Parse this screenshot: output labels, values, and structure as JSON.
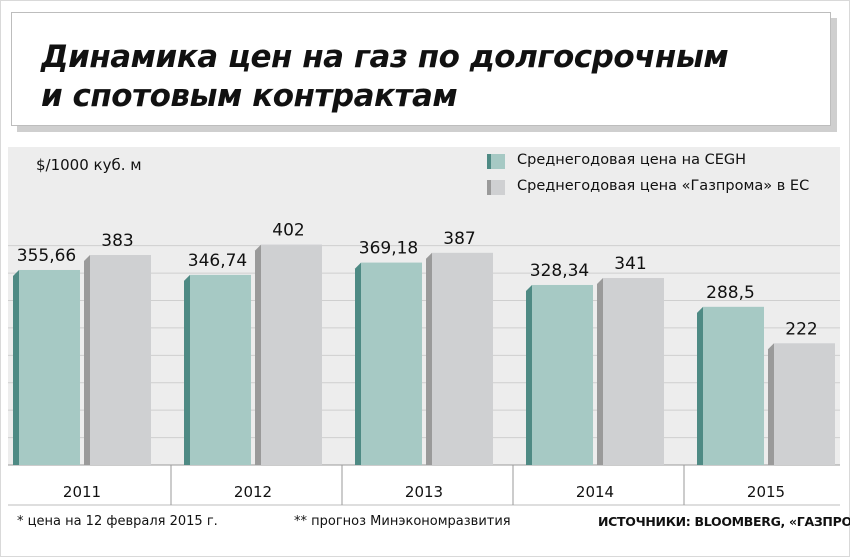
{
  "title": {
    "line1": "Динамика цен на газ по долгосрочным",
    "line2": "и спотовым контрактам"
  },
  "unit_label": "$/1000 куб. м",
  "legend": [
    {
      "label": "Среднегодовая цена на CEGH",
      "color": "#a6c9c4"
    },
    {
      "label": "Среднегодовая цена «Газпрома» в ЕС",
      "color": "#cfd0d2"
    }
  ],
  "footnotes": {
    "note1": "* цена на 12 февраля 2015 г.",
    "note2": "** прогноз Минэкономразвития",
    "source": "ИСТОЧНИКИ: BLOOMBERG, «ГАЗПРОМ»"
  },
  "colors": {
    "series1_front": "#a6c9c4",
    "series1_side": "#4e8a84",
    "series2_front": "#cfd0d2",
    "series2_side": "#9a9a9a",
    "band": "#ededed",
    "grid": "#cfcfcf"
  },
  "chart_data": {
    "type": "bar",
    "categories": [
      "2011",
      "2012",
      "2013",
      "2014",
      "2015"
    ],
    "series": [
      {
        "name": "Среднегодовая цена на CEGH",
        "values": [
          355.66,
          346.74,
          369.18,
          328.34,
          288.5
        ],
        "labels": [
          "355,66",
          "346,74",
          "369,18",
          "328,34",
          "288,5"
        ]
      },
      {
        "name": "Среднегодовая цена «Газпрома» в ЕС",
        "values": [
          383,
          402,
          387,
          341,
          222
        ],
        "labels": [
          "383",
          "402",
          "387",
          "341",
          "222"
        ]
      }
    ],
    "ylim": [
      0,
      420
    ],
    "grid": true,
    "legend_position": "top-right"
  }
}
